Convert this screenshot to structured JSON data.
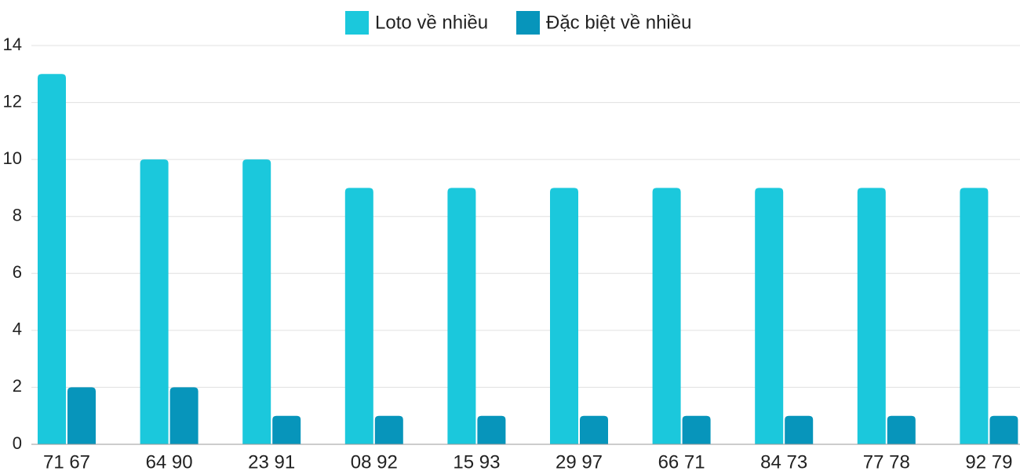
{
  "chart_data": {
    "type": "bar",
    "categories": [
      "71 67",
      "64 90",
      "23 91",
      "08 92",
      "15 93",
      "29 97",
      "66 71",
      "84 73",
      "77 78",
      "92 79"
    ],
    "series": [
      {
        "name": "Loto về nhiều",
        "color": "#1bc8dc",
        "values": [
          13,
          10,
          10,
          9,
          9,
          9,
          9,
          9,
          9,
          9
        ]
      },
      {
        "name": "Đặc biệt về nhiều",
        "color": "#0795bb",
        "values": [
          2,
          2,
          1,
          1,
          1,
          1,
          1,
          1,
          1,
          1
        ]
      }
    ],
    "ylim": [
      0,
      14
    ],
    "yticks": [
      0,
      2,
      4,
      6,
      8,
      10,
      12,
      14
    ],
    "grid": true,
    "legend": "top"
  }
}
